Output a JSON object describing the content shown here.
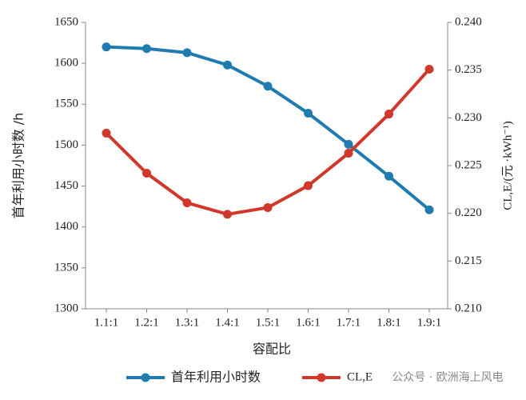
{
  "chart_data": {
    "type": "line",
    "xlabel": "容配比",
    "ylabel": "首年利用小时数 /h",
    "y2label": "CL,E/(元 ·kWh⁻¹)",
    "categories": [
      "1.1:1",
      "1.2:1",
      "1.3:1",
      "1.4:1",
      "1.5:1",
      "1.6:1",
      "1.7:1",
      "1.8:1",
      "1.9:1"
    ],
    "series": [
      {
        "name": "首年利用小时数",
        "color": "#1f7bb0",
        "values": [
          1620,
          1618,
          1613,
          1598,
          1572,
          1539,
          1501,
          1462,
          1421
        ]
      },
      {
        "name": "CL,E",
        "color": "#d1382c",
        "axis": "y2",
        "values": [
          0.2284,
          0.2242,
          0.2211,
          0.2199,
          0.2206,
          0.2229,
          0.2263,
          0.2304,
          0.2351
        ]
      }
    ],
    "ylim": [
      1300,
      1650
    ],
    "yticks": [
      1300,
      1350,
      1400,
      1450,
      1500,
      1550,
      1600,
      1650
    ],
    "y2lim": [
      0.21,
      0.24
    ],
    "y2ticks": [
      {
        "value": 0.21,
        "label": "0.210"
      },
      {
        "value": 0.215,
        "label": "0.215"
      },
      {
        "value": 0.22,
        "label": "0.220"
      },
      {
        "value": 0.225,
        "label": "0.225"
      },
      {
        "value": 0.23,
        "label": "0.230"
      },
      {
        "value": 0.235,
        "label": "0.235"
      },
      {
        "value": 0.24,
        "label": "0.240"
      }
    ],
    "annotation": "公众号 · 欧洲海上风电"
  }
}
